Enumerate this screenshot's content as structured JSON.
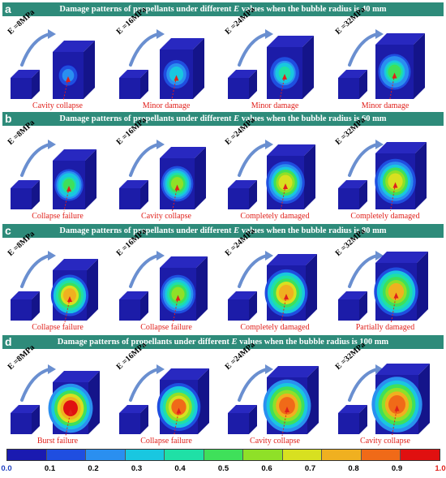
{
  "panels": [
    {
      "letter": "a",
      "title_prefix": "Damage patterns of propellants under different ",
      "title_var": "E",
      "title_suffix": " values when the bubble radius is 40 mm",
      "labels": [
        "E =8MPa",
        "E =16MPa",
        "E =24MPa",
        "E =32MPa"
      ],
      "captions": [
        "Cavity collapse",
        "Minor damage",
        "Minor damage",
        "Minor damage"
      ],
      "damage_levels": [
        0.2,
        0.35,
        0.4,
        0.45
      ]
    },
    {
      "letter": "b",
      "title_prefix": "Damage patterns of propellants under different ",
      "title_var": "E",
      "title_suffix": " values when the bubble radius is 60 mm",
      "labels": [
        "E =8MPa",
        "E =16MPa",
        "E =24MPa",
        "E =32MPa"
      ],
      "captions": [
        "Collapse failure",
        "Cavity collapse",
        "Completely damaged",
        "Completely damaged"
      ],
      "damage_levels": [
        0.5,
        0.55,
        0.7,
        0.7
      ]
    },
    {
      "letter": "c",
      "title_prefix": "Damage patterns of propellants under different ",
      "title_var": "E",
      "title_suffix": " values when the bubble radius is 80 mm",
      "labels": [
        "E =8MPa",
        "E =16MPa",
        "E =24MPa",
        "E =32MPa"
      ],
      "captions": [
        "Collapse failure",
        "Collapse failure",
        "Completely damaged",
        "Partially damaged"
      ],
      "damage_levels": [
        0.8,
        0.6,
        0.8,
        0.75
      ]
    },
    {
      "letter": "d",
      "title_prefix": "Damage patterns of propellants under different ",
      "title_var": "E",
      "title_suffix": " values when the bubble radius is 100 mm",
      "labels": [
        "E =8MPa",
        "E =16MPa",
        "E =24MPa",
        "E =32MPa"
      ],
      "captions": [
        "Burst failure",
        "Collapse failure",
        "Cavity collapse",
        "Cavity collapse"
      ],
      "damage_levels": [
        1.0,
        0.85,
        0.9,
        0.9
      ]
    }
  ],
  "colorbar": {
    "ticks": [
      "0.0",
      "0.1",
      "0.2",
      "0.3",
      "0.4",
      "0.5",
      "0.6",
      "0.7",
      "0.8",
      "0.9",
      "1.0"
    ],
    "end_tick_colors": {
      "min": "#1f3fbf",
      "max": "#e0201b"
    },
    "colors": [
      "#1a1ab0",
      "#1f4ee0",
      "#2a8ff0",
      "#19c7e0",
      "#1fe0a6",
      "#3fe05a",
      "#8fe028",
      "#d8e020",
      "#f0b020",
      "#f06a18",
      "#e01010"
    ]
  },
  "colors": {
    "header_bg": "#2e8b7a",
    "caption_red": "#e0201b",
    "cube_front": "#1c1ca8",
    "cube_top": "#2828c0",
    "cube_side": "#14148a"
  }
}
